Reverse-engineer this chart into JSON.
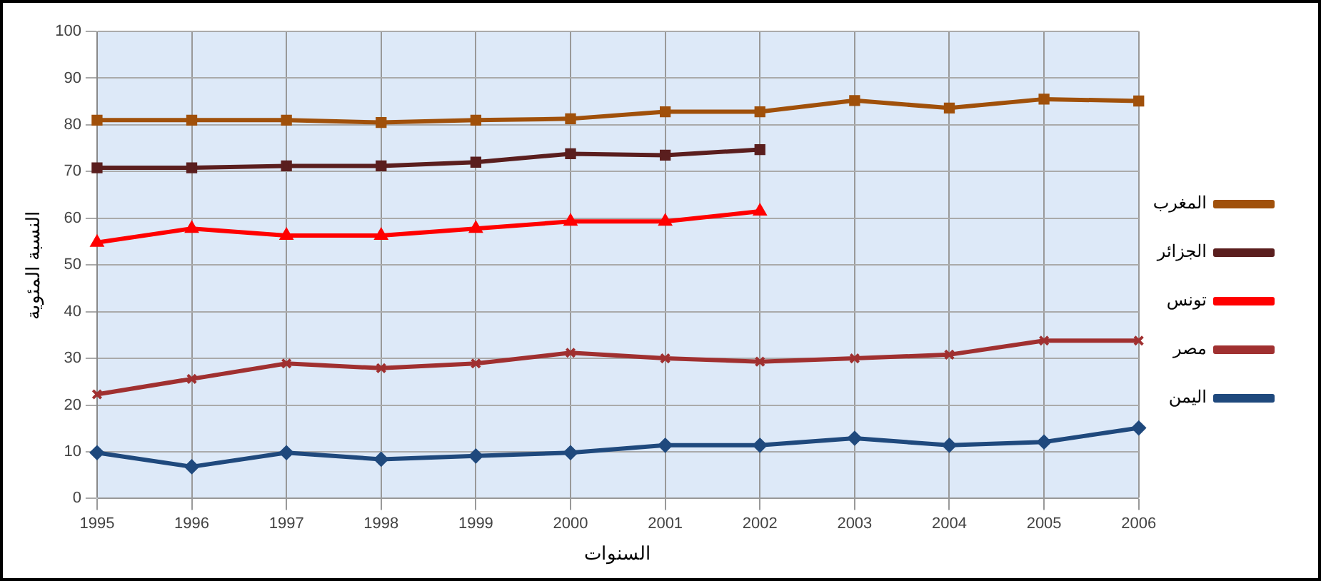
{
  "chart_data": {
    "type": "line",
    "xlabel": "السنوات",
    "ylabel": "النسبة المئوية",
    "categories": [
      "1995",
      "1996",
      "1997",
      "1998",
      "1999",
      "2000",
      "2001",
      "2002",
      "2003",
      "2004",
      "2005",
      "2006"
    ],
    "series": [
      {
        "name": "المغرب",
        "color": "#a0500a",
        "marker": "square",
        "values": [
          81,
          81,
          81,
          80.5,
          81,
          81.3,
          82.8,
          82.8,
          85.2,
          83.6,
          85.5,
          85.1
        ]
      },
      {
        "name": "الجزائر",
        "color": "#5a1e1e",
        "marker": "square",
        "values": [
          70.8,
          70.8,
          71.2,
          71.2,
          72,
          73.8,
          73.5,
          74.7,
          null,
          null,
          null,
          null
        ]
      },
      {
        "name": "تونس",
        "color": "#ff0000",
        "marker": "triangle",
        "values": [
          54.8,
          57.8,
          56.3,
          56.3,
          57.8,
          59.3,
          59.3,
          61.5,
          null,
          null,
          null,
          null
        ]
      },
      {
        "name": "مصر",
        "color": "#a03030",
        "marker": "cross",
        "values": [
          22.3,
          25.6,
          28.9,
          27.9,
          28.9,
          31.2,
          30,
          29.3,
          30,
          30.8,
          33.8,
          33.8
        ]
      },
      {
        "name": "اليمن",
        "color": "#1f497d",
        "marker": "diamond",
        "values": [
          9.8,
          6.8,
          9.8,
          8.4,
          9.1,
          9.8,
          11.4,
          11.4,
          12.9,
          11.4,
          12.1,
          15.1
        ]
      }
    ],
    "ylim": [
      0,
      100
    ],
    "yticks": [
      0,
      10,
      20,
      30,
      40,
      50,
      60,
      70,
      80,
      90,
      100
    ],
    "grid": true,
    "legend": "right"
  }
}
